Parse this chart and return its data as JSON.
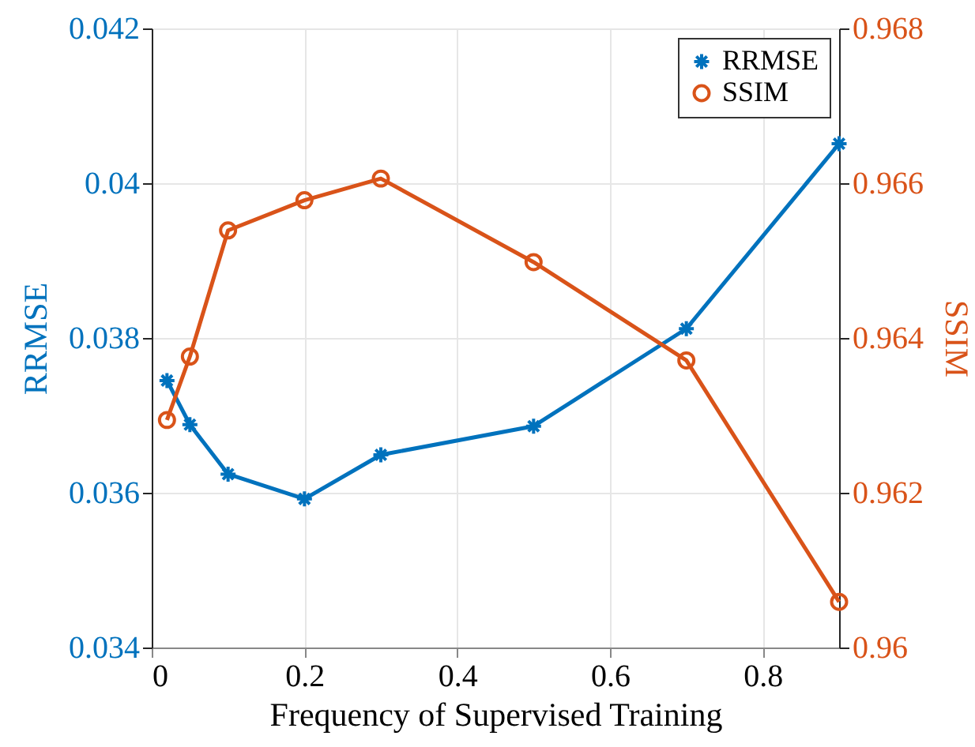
{
  "chart_data": {
    "type": "line",
    "xlabel": "Frequency of Supervised Training",
    "ylabel": "RRMSE",
    "y2label": "SSIM",
    "x": [
      0.02,
      0.05,
      0.1,
      0.2,
      0.3,
      0.5,
      0.7,
      0.9
    ],
    "series": [
      {
        "name": "RRMSE",
        "color": "#0072bd",
        "marker": "cross",
        "values": [
          0.03745,
          0.03688,
          0.03624,
          0.03592,
          0.03649,
          0.03686,
          0.03812,
          0.04051
        ]
      },
      {
        "name": "SSIM",
        "color": "#d95319",
        "marker": "circle",
        "axis": "y2",
        "values": [
          0.96294,
          0.96376,
          0.96539,
          0.96578,
          0.96606,
          0.96498,
          0.96371,
          0.96059
        ]
      }
    ],
    "xlim": [
      0,
      0.9
    ],
    "xticks": [
      0,
      0.2,
      0.4,
      0.6,
      0.8
    ],
    "ylim": [
      0.034,
      0.042
    ],
    "yticks": [
      0.034,
      0.036,
      0.038,
      0.04,
      0.042
    ],
    "y2lim": [
      0.96,
      0.968
    ],
    "y2ticks": [
      0.96,
      0.962,
      0.964,
      0.966,
      0.968
    ],
    "grid": true,
    "legend": "top right",
    "line_style": "solid"
  }
}
